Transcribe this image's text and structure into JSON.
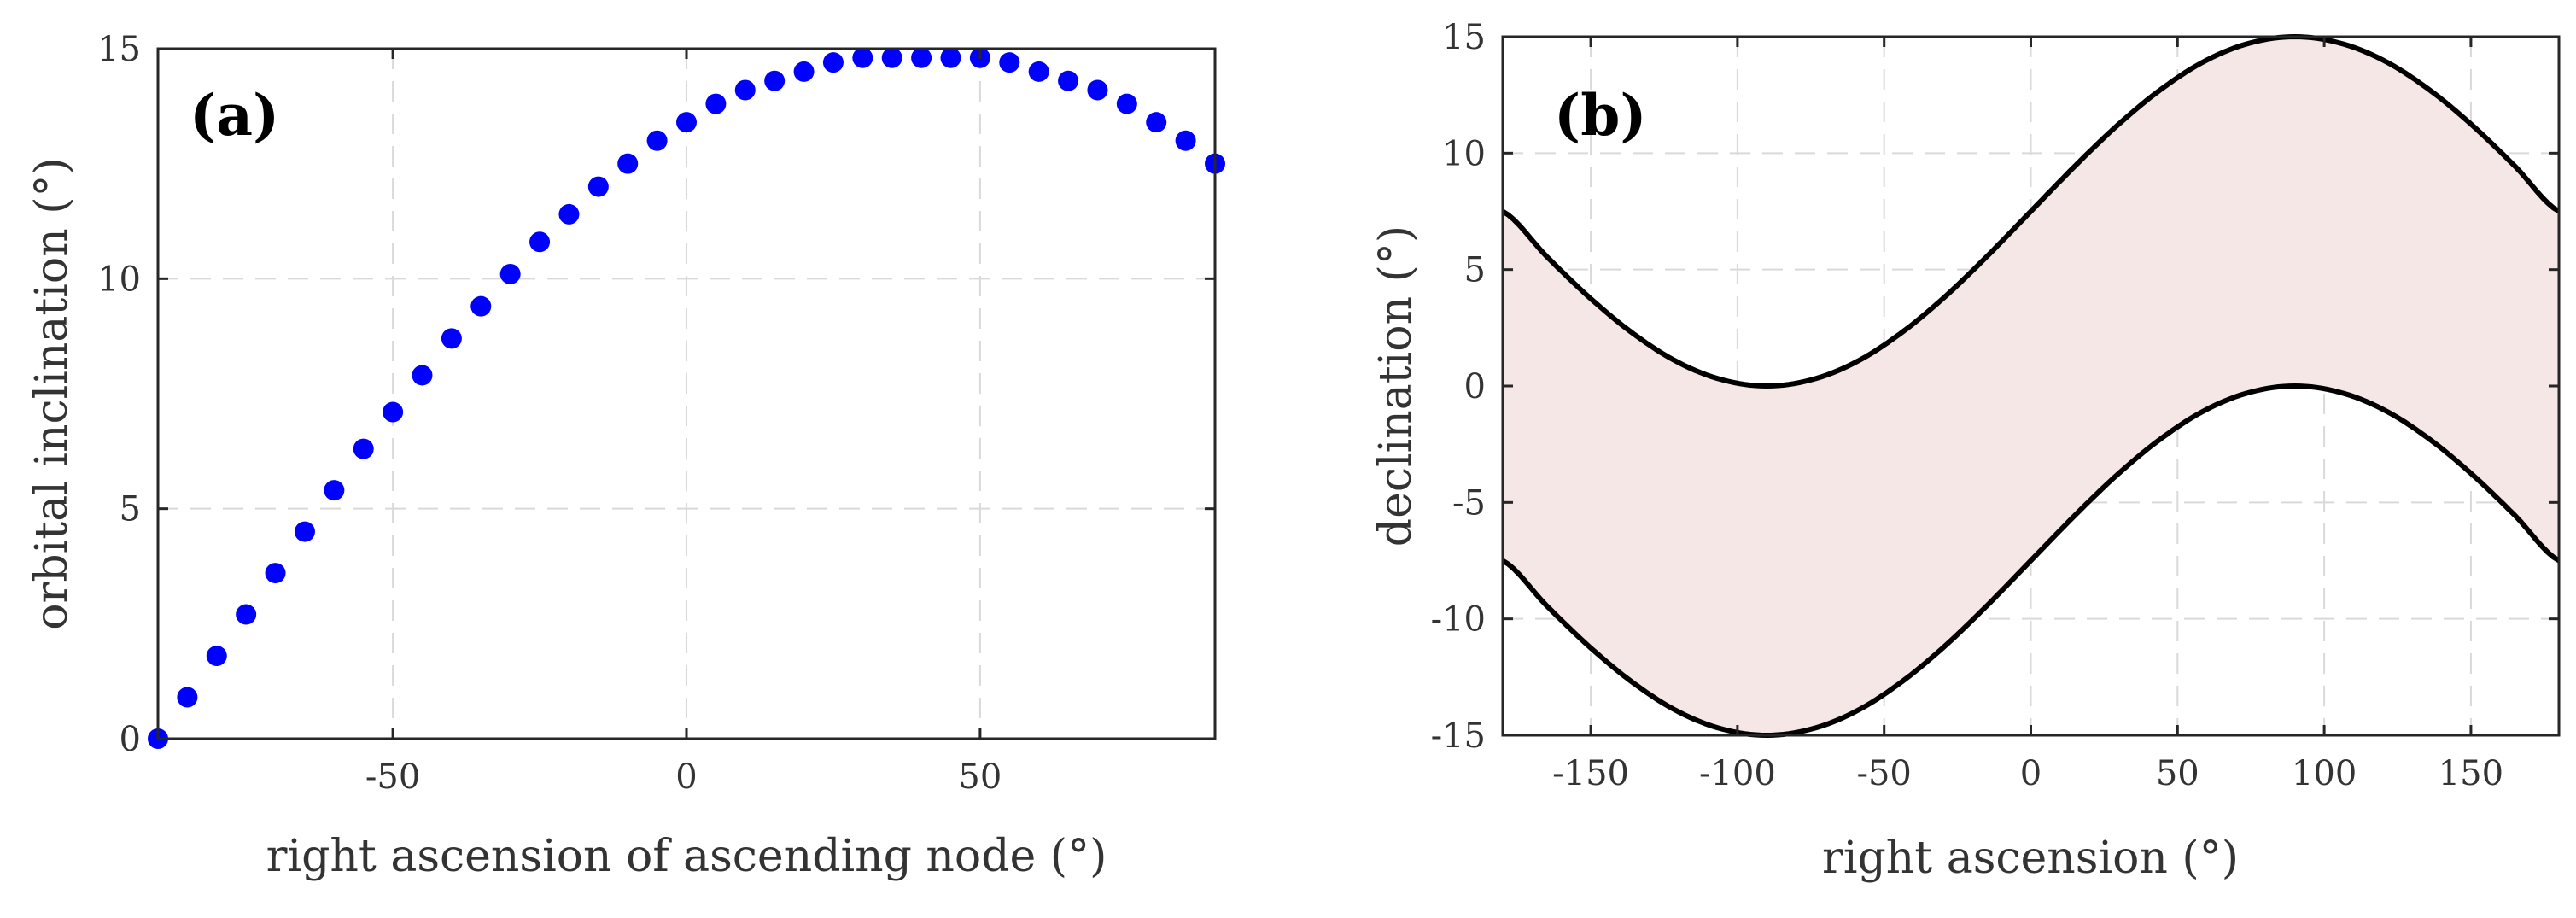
{
  "chart_data": [
    {
      "type": "scatter",
      "panel_label": "(a)",
      "xlabel": "right ascension of ascending node (°)",
      "ylabel": "orbital inclination (°)",
      "xlim": [
        -90,
        90
      ],
      "ylim": [
        0,
        15
      ],
      "xticks": [
        -50,
        0,
        50
      ],
      "yticks": [
        0,
        5,
        10,
        15
      ],
      "xtick_labels": [
        "-50",
        "0",
        "50"
      ],
      "ytick_labels": [
        "0",
        "5",
        "10",
        "15"
      ],
      "grid": true,
      "marker_color": "#0000ff",
      "series": [
        {
          "name": "orbital inclination",
          "x": [
            -90,
            -85,
            -80,
            -75,
            -70,
            -65,
            -60,
            -55,
            -50,
            -45,
            -40,
            -35,
            -30,
            -25,
            -20,
            -15,
            -10,
            -5,
            0,
            5,
            10,
            15,
            20,
            25,
            30,
            35,
            40,
            45,
            50,
            55,
            60,
            65,
            70,
            75,
            80,
            85,
            90
          ],
          "y": [
            0,
            0.9,
            1.8,
            2.7,
            3.6,
            4.5,
            5.4,
            6.3,
            7.1,
            7.9,
            8.7,
            9.4,
            10.1,
            10.8,
            11.4,
            12.0,
            12.5,
            13.0,
            13.4,
            13.8,
            14.1,
            14.3,
            14.5,
            14.7,
            14.8,
            14.8,
            14.8,
            14.8,
            14.8,
            14.7,
            14.5,
            14.3,
            14.1,
            13.8,
            13.4,
            13.0,
            12.5
          ]
        }
      ]
    },
    {
      "type": "area",
      "panel_label": "(b)",
      "xlabel": "right ascension (°)",
      "ylabel": "declination (°)",
      "xlim": [
        -180,
        180
      ],
      "ylim": [
        -15,
        15
      ],
      "xticks": [
        -150,
        -100,
        -50,
        0,
        50,
        100,
        150
      ],
      "yticks": [
        -15,
        -10,
        -5,
        0,
        5,
        10,
        15
      ],
      "xtick_labels": [
        "-150",
        "-100",
        "-50",
        "0",
        "50",
        "100",
        "150"
      ],
      "ytick_labels": [
        "-15",
        "-10",
        "-5",
        "0",
        "5",
        "10",
        "15"
      ],
      "grid": true,
      "fill_color": "#f5e7e5",
      "line_color": "#000000",
      "series": [
        {
          "name": "upper boundary",
          "x": [
            -180,
            -165,
            -150,
            -135,
            -120,
            -105,
            -90,
            -75,
            -60,
            -45,
            -30,
            -15,
            0,
            15,
            30,
            45,
            60,
            75,
            90,
            105,
            120,
            135,
            150,
            165,
            180
          ],
          "y": [
            7.5,
            5.56,
            3.75,
            2.2,
            1.0,
            0.26,
            0,
            0.26,
            1.0,
            2.2,
            3.75,
            5.56,
            7.5,
            9.44,
            11.25,
            12.8,
            14.0,
            14.74,
            15.0,
            14.74,
            14.0,
            12.8,
            11.25,
            9.44,
            7.5
          ]
        },
        {
          "name": "lower boundary",
          "x": [
            -180,
            -165,
            -150,
            -135,
            -120,
            -105,
            -90,
            -75,
            -60,
            -45,
            -30,
            -15,
            0,
            15,
            30,
            45,
            60,
            75,
            90,
            105,
            120,
            135,
            150,
            165,
            180
          ],
          "y": [
            -7.5,
            -9.44,
            -11.25,
            -12.8,
            -14.0,
            -14.74,
            -15.0,
            -14.74,
            -14.0,
            -12.8,
            -11.25,
            -9.44,
            -7.5,
            -5.56,
            -3.75,
            -2.2,
            -1.0,
            -0.26,
            0,
            -0.26,
            -1.0,
            -2.2,
            -3.75,
            -5.56,
            -7.5
          ]
        }
      ]
    }
  ]
}
